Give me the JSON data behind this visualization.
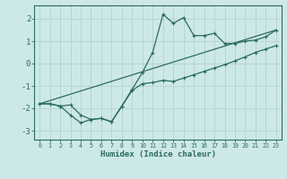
{
  "xlabel": "Humidex (Indice chaleur)",
  "background_color": "#cde8e8",
  "grid_color": "#b8d4d4",
  "line_color": "#2a6b62",
  "xlim": [
    -0.5,
    23.5
  ],
  "ylim": [
    -3.4,
    2.6
  ],
  "x_ticks": [
    0,
    1,
    2,
    3,
    4,
    5,
    6,
    7,
    8,
    9,
    10,
    11,
    12,
    13,
    14,
    15,
    16,
    17,
    18,
    19,
    20,
    21,
    22,
    23
  ],
  "y_ticks": [
    -3,
    -2,
    -1,
    0,
    1,
    2
  ],
  "curve1_x": [
    0,
    1,
    2,
    3,
    4,
    5,
    6,
    7,
    8,
    9,
    10,
    11,
    12,
    13,
    14,
    15,
    16,
    17,
    18,
    19,
    20,
    21,
    22,
    23
  ],
  "curve1_y": [
    -1.8,
    -1.8,
    -1.9,
    -2.3,
    -2.65,
    -2.5,
    -2.45,
    -2.6,
    -1.9,
    -1.2,
    -0.9,
    -0.85,
    -0.75,
    -0.8,
    -0.65,
    -0.5,
    -0.35,
    -0.2,
    -0.05,
    0.12,
    0.3,
    0.5,
    0.65,
    0.8
  ],
  "curve2_x": [
    0,
    1,
    2,
    3,
    4,
    5,
    6,
    7,
    8,
    9,
    10,
    11,
    12,
    13,
    14,
    15,
    16,
    17,
    18,
    19,
    20,
    21,
    22,
    23
  ],
  "curve2_y": [
    -1.8,
    -1.8,
    -1.9,
    -1.85,
    -2.3,
    -2.5,
    -2.45,
    -2.6,
    -1.9,
    -1.15,
    -0.4,
    0.5,
    2.2,
    1.8,
    2.05,
    1.25,
    1.25,
    1.35,
    0.9,
    0.9,
    1.0,
    1.05,
    1.2,
    1.5
  ],
  "line_x": [
    0,
    23
  ],
  "line_y": [
    -1.8,
    1.5
  ]
}
